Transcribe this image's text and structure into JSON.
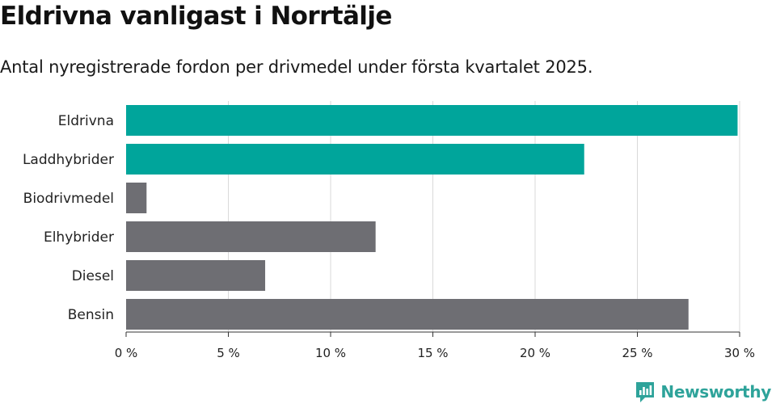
{
  "header": {
    "title": "Eldrivna vanligast i Norrtälje",
    "subtitle": "Antal nyregistrerade fordon per drivmedel under första kvartalet 2025."
  },
  "brand": {
    "name": "Newsworthy"
  },
  "colors": {
    "highlight": "#00a59b",
    "default": "#6e6e73",
    "grid": "#d9d9d9",
    "brand": "#2ea39a"
  },
  "chart_data": {
    "type": "bar",
    "orientation": "horizontal",
    "categories": [
      "Eldrivna",
      "Laddhybrider",
      "Biodrivmedel",
      "Elhybrider",
      "Diesel",
      "Bensin"
    ],
    "values": [
      29.9,
      22.4,
      1.0,
      12.2,
      6.8,
      27.5
    ],
    "highlighted": [
      "Eldrivna",
      "Laddhybrider"
    ],
    "xlim": [
      0,
      30
    ],
    "xticks": [
      0,
      5,
      10,
      15,
      20,
      25,
      30
    ],
    "xtick_labels": [
      "0 %",
      "5 %",
      "10 %",
      "15 %",
      "20 %",
      "25 %",
      "30 %"
    ],
    "grid": true
  }
}
